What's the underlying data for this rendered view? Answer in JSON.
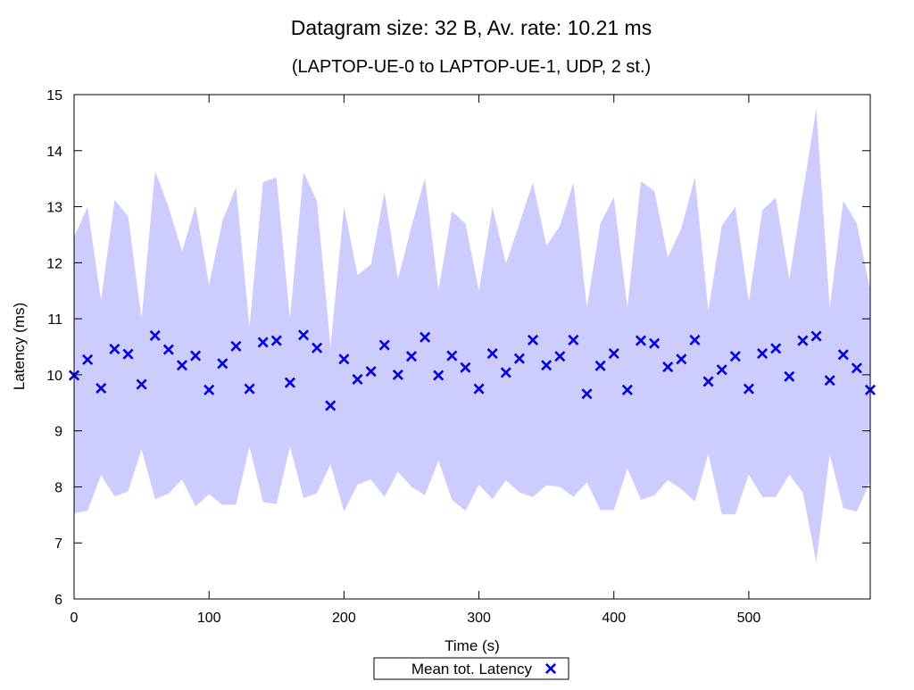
{
  "chart_data": {
    "type": "scatter",
    "title": "Datagram size: 32 B, Av. rate: 10.21 ms",
    "subtitle": "(LAPTOP-UE-0 to LAPTOP-UE-1, UDP, 2 st.)",
    "xlabel": "Time (s)",
    "ylabel": "Latency (ms)",
    "xlim": [
      0,
      590
    ],
    "ylim": [
      6,
      15
    ],
    "xticks": [
      0,
      100,
      200,
      300,
      400,
      500
    ],
    "yticks": [
      6,
      7,
      8,
      9,
      10,
      11,
      12,
      13,
      14,
      15
    ],
    "grid": false,
    "legend_position": "bottom-center",
    "series": [
      {
        "name": "Mean tot. Latency",
        "marker": "x",
        "color": "#0000e0",
        "band_color": "#ccccff",
        "x": [
          0,
          10,
          20,
          30,
          40,
          50,
          60,
          70,
          80,
          90,
          100,
          110,
          120,
          130,
          140,
          150,
          160,
          170,
          180,
          190,
          200,
          210,
          220,
          230,
          240,
          250,
          260,
          270,
          280,
          290,
          300,
          310,
          320,
          330,
          340,
          350,
          360,
          370,
          380,
          390,
          400,
          410,
          420,
          430,
          440,
          450,
          460,
          470,
          480,
          490,
          500,
          510,
          520,
          530,
          540,
          550,
          560,
          570,
          580,
          590
        ],
        "values": [
          9.99,
          10.27,
          9.76,
          10.46,
          10.37,
          9.83,
          10.7,
          10.45,
          10.17,
          10.34,
          9.73,
          10.2,
          10.51,
          9.75,
          10.58,
          10.61,
          9.86,
          10.71,
          10.48,
          9.45,
          10.28,
          9.92,
          10.06,
          10.53,
          10.0,
          10.33,
          10.67,
          9.99,
          10.34,
          10.13,
          9.75,
          10.38,
          10.04,
          10.29,
          10.62,
          10.17,
          10.33,
          10.62,
          9.66,
          10.16,
          10.38,
          9.73,
          10.61,
          10.56,
          10.14,
          10.28,
          10.62,
          9.88,
          10.09,
          10.33,
          9.75,
          10.38,
          10.47,
          9.97,
          10.61,
          10.69,
          9.9,
          10.36,
          10.12,
          9.73
        ],
        "upper": [
          12.46,
          13.0,
          11.33,
          13.12,
          12.83,
          11.0,
          13.64,
          13.0,
          12.2,
          13.02,
          11.6,
          12.75,
          13.35,
          10.85,
          13.44,
          13.52,
          11.0,
          13.62,
          13.1,
          10.5,
          13.0,
          11.78,
          11.97,
          13.26,
          11.7,
          12.65,
          13.51,
          11.5,
          12.92,
          12.7,
          11.5,
          13.0,
          11.98,
          12.7,
          13.43,
          12.3,
          12.66,
          13.43,
          11.2,
          12.7,
          13.17,
          11.2,
          13.45,
          13.28,
          12.1,
          12.61,
          13.52,
          11.15,
          12.66,
          13.0,
          11.3,
          12.94,
          13.16,
          11.7,
          13.25,
          14.75,
          11.2,
          13.11,
          12.7,
          11.5
        ],
        "lower": [
          7.53,
          7.57,
          8.21,
          7.83,
          7.92,
          8.67,
          7.78,
          7.88,
          8.13,
          7.65,
          7.87,
          7.68,
          7.68,
          8.72,
          7.73,
          7.69,
          8.72,
          7.8,
          7.89,
          8.4,
          7.56,
          8.04,
          8.13,
          7.82,
          8.27,
          8.0,
          7.85,
          8.47,
          7.77,
          7.57,
          8.04,
          7.78,
          8.12,
          7.9,
          7.82,
          8.03,
          8.0,
          7.82,
          8.08,
          7.59,
          7.59,
          8.33,
          7.77,
          7.85,
          8.12,
          7.96,
          7.74,
          8.59,
          7.51,
          7.51,
          8.22,
          7.82,
          7.82,
          8.22,
          7.9,
          6.65,
          8.58,
          7.62,
          7.56,
          8.1
        ]
      }
    ]
  }
}
